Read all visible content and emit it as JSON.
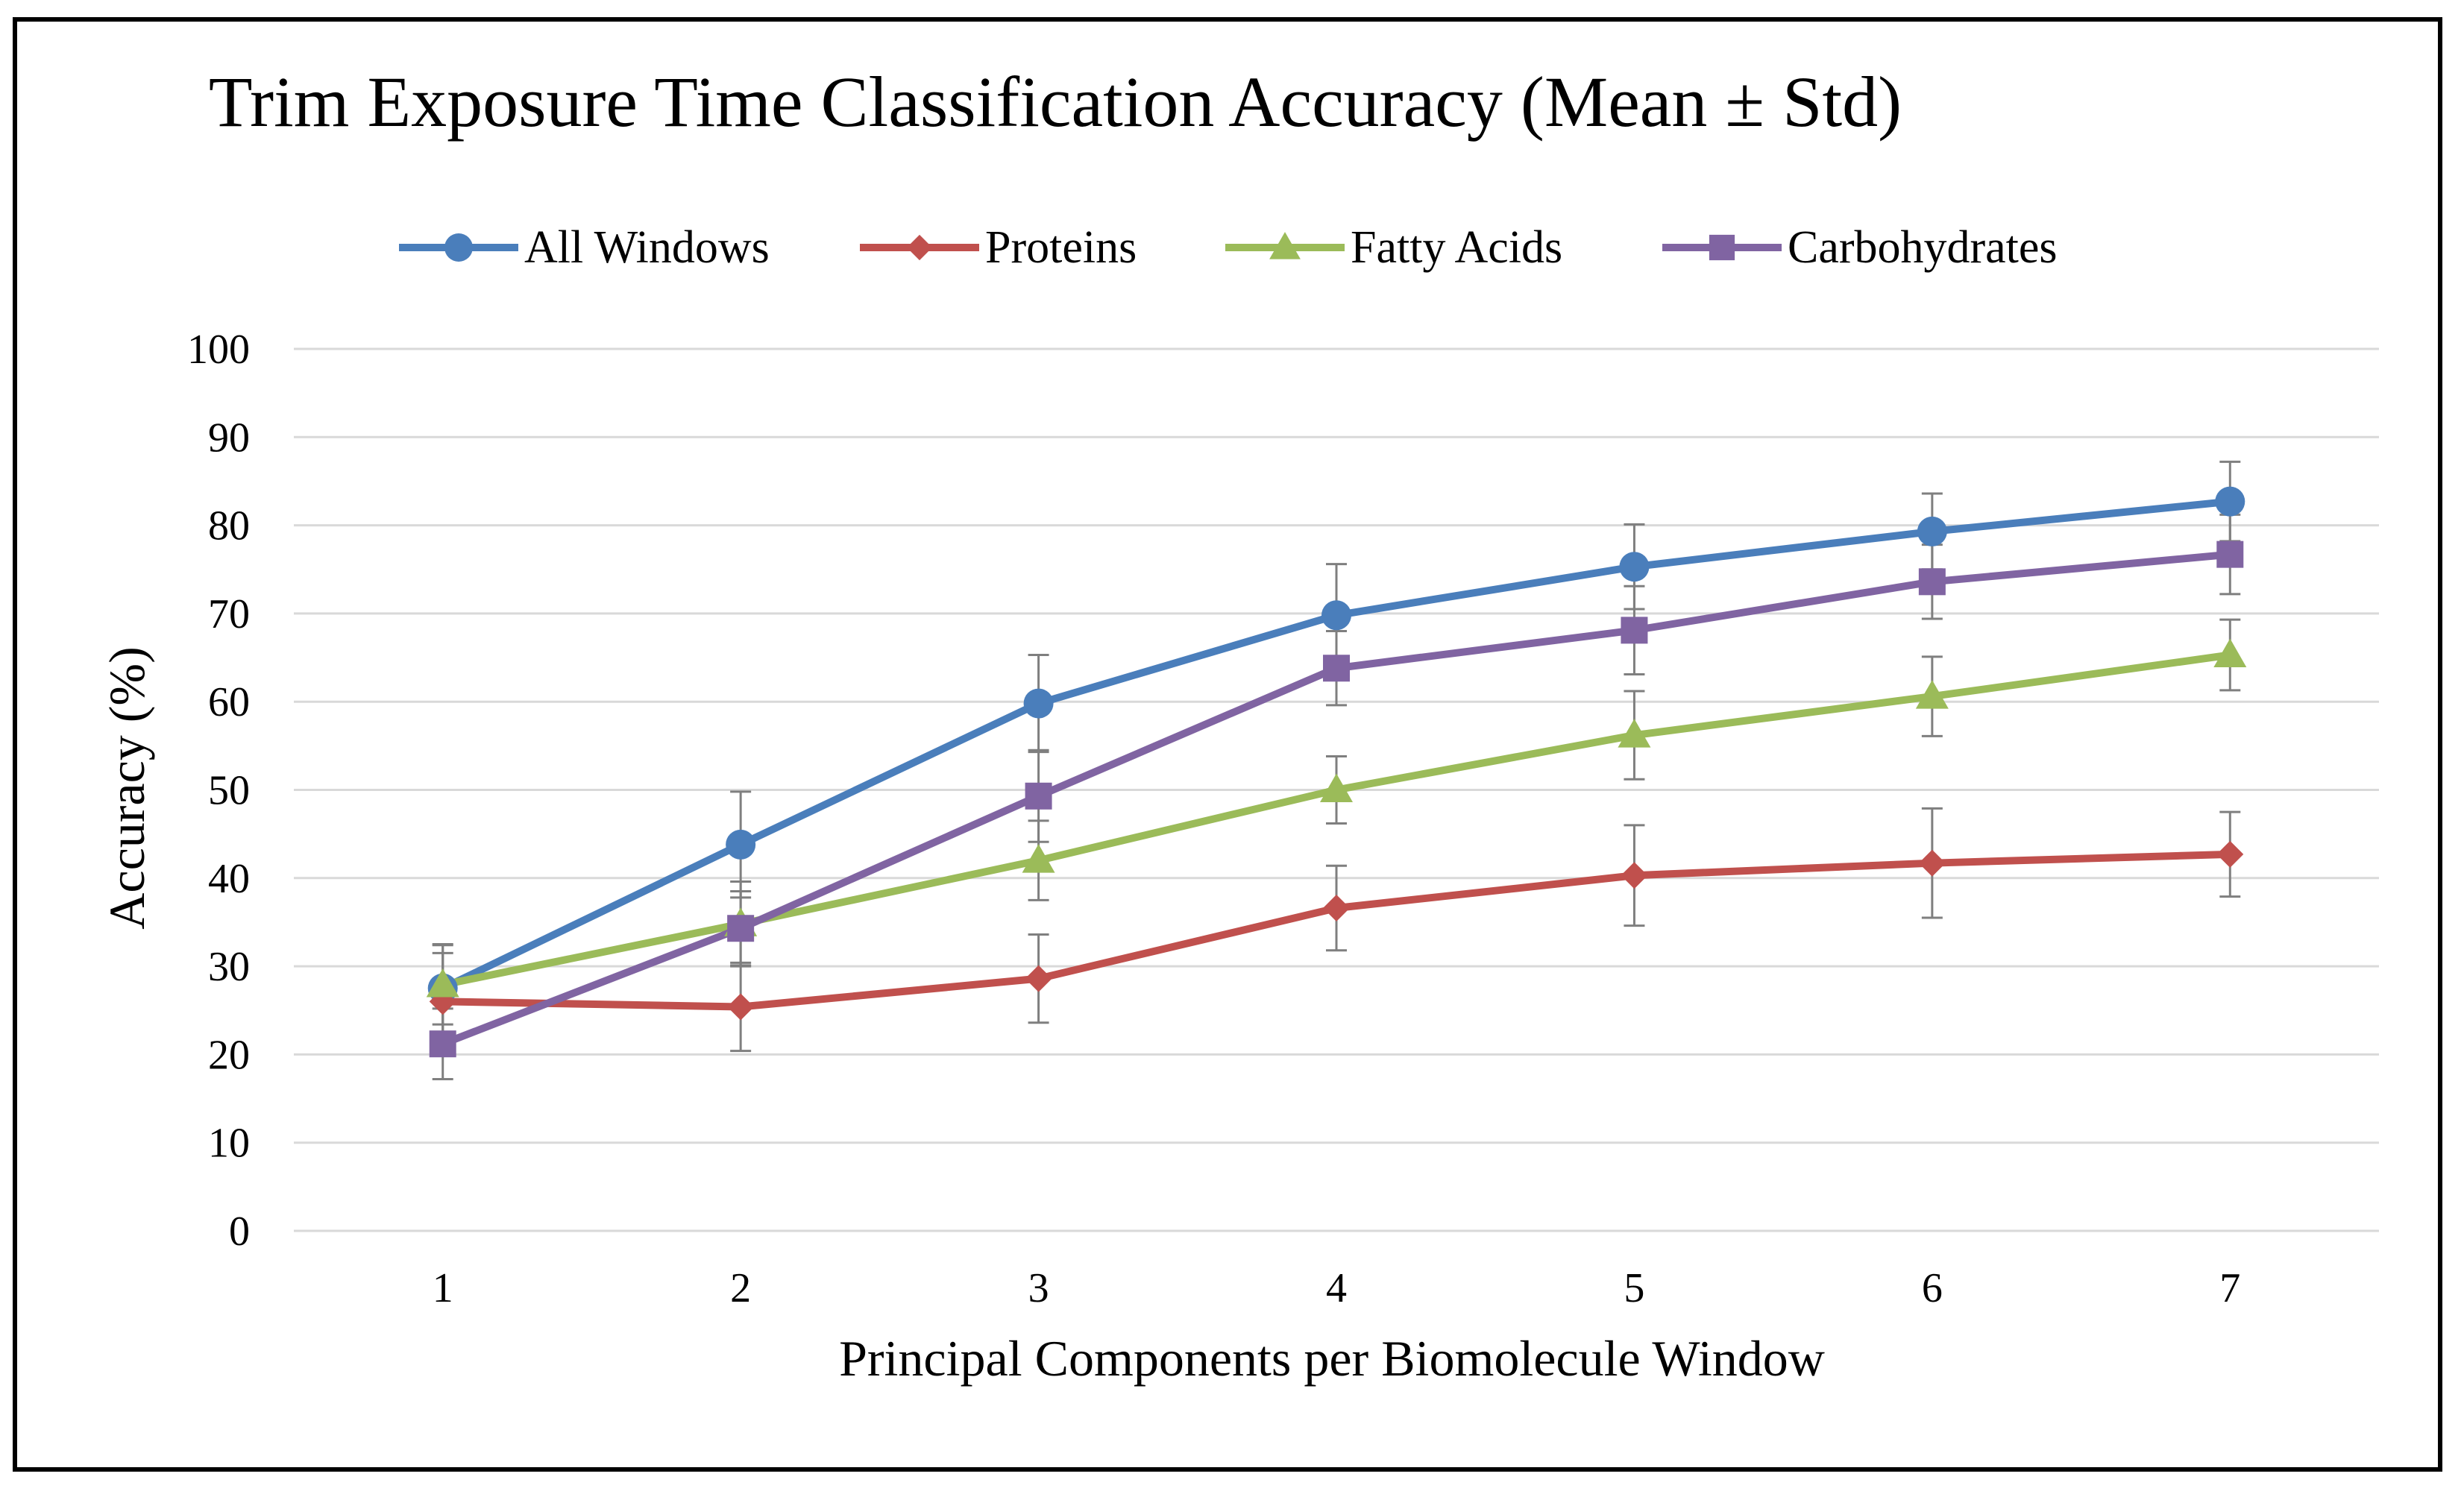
{
  "chart_data": {
    "type": "line",
    "title": "Trim Exposure Time Classification Accuracy (Mean ± Std)",
    "xlabel": "Principal Components per Biomolecule Window",
    "ylabel": "Accuracy (%)",
    "categories": [
      "1",
      "2",
      "3",
      "4",
      "5",
      "6",
      "7"
    ],
    "ylim": [
      0,
      100
    ],
    "yticks": [
      0,
      10,
      20,
      30,
      40,
      50,
      60,
      70,
      80,
      90,
      100
    ],
    "grid": "horizontal",
    "legend_position": "top",
    "series": [
      {
        "name": "All Windows",
        "color": "#4a7ebb",
        "marker": "circle",
        "values": [
          27.5,
          43.8,
          59.8,
          69.8,
          75.3,
          79.3,
          82.7
        ],
        "errors": [
          5.0,
          6.0,
          5.5,
          5.8,
          4.8,
          4.3,
          4.5
        ]
      },
      {
        "name": "Proteins",
        "color": "#c0504d",
        "marker": "diamond",
        "values": [
          26.0,
          25.4,
          28.6,
          36.6,
          40.3,
          41.7,
          42.7
        ],
        "errors": [
          5.5,
          5.0,
          5.0,
          4.8,
          5.7,
          6.2,
          4.8
        ]
      },
      {
        "name": "Fatty Acids",
        "color": "#9bbb59",
        "marker": "triangle",
        "values": [
          27.9,
          34.8,
          42.0,
          50.0,
          56.2,
          60.6,
          65.3
        ],
        "errors": [
          4.5,
          4.8,
          4.5,
          3.8,
          5.0,
          4.5,
          4.0
        ]
      },
      {
        "name": "Carbohydrates",
        "color": "#8064a2",
        "marker": "square",
        "values": [
          21.2,
          34.3,
          49.3,
          63.8,
          68.1,
          73.6,
          76.7
        ],
        "errors": [
          4.0,
          4.2,
          5.2,
          4.2,
          5.0,
          4.2,
          4.5
        ]
      }
    ]
  }
}
